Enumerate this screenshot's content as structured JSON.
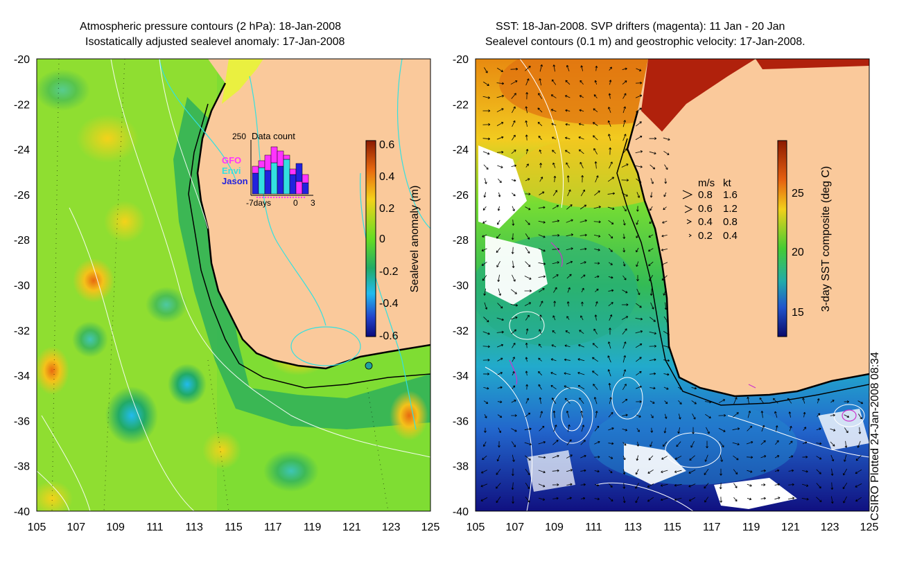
{
  "left_panel": {
    "title_line1": "Atmospheric pressure contours (2 hPa): 18-Jan-2008",
    "title_line2": "Isostatically adjusted sealevel anomaly: 17-Jan-2008",
    "colorbar": {
      "label": "Sealevel anomaly (m)",
      "ticks": [
        "0.6",
        "0.4",
        "0.2",
        "0",
        "-0.2",
        "-0.4",
        "-0.6"
      ]
    },
    "inset": {
      "count_label": "250",
      "title": "Data count",
      "legend": [
        {
          "label": "GFO",
          "color": "#ff33ff"
        },
        {
          "label": "Envi",
          "color": "#33e0e0"
        },
        {
          "label": "Jason",
          "color": "#2222dd"
        }
      ],
      "x_labels": [
        "-7days",
        "0",
        "3"
      ]
    }
  },
  "right_panel": {
    "title_line1": "SST: 18-Jan-2008. SVP drifters (magenta): 11 Jan - 20 Jan",
    "title_line2": "Sealevel contours (0.1 m) and geostrophic velocity: 17-Jan-2008.",
    "colorbar": {
      "label": "3-day SST composite (deg C)",
      "ticks": [
        "25",
        "20",
        "15"
      ]
    },
    "velocity_key": {
      "header_ms": "m/s",
      "header_kt": "kt",
      "rows": [
        {
          "ms": "0.8",
          "kt": "1.6"
        },
        {
          "ms": "0.6",
          "kt": "1.2"
        },
        {
          "ms": "0.4",
          "kt": "0.8"
        },
        {
          "ms": "0.2",
          "kt": "0.4"
        }
      ]
    }
  },
  "axes": {
    "lat_ticks": [
      "-20",
      "-22",
      "-24",
      "-26",
      "-28",
      "-30",
      "-32",
      "-34",
      "-36",
      "-38",
      "-40"
    ],
    "lon_ticks": [
      "105",
      "107",
      "109",
      "111",
      "113",
      "115",
      "117",
      "119",
      "121",
      "123",
      "125"
    ]
  },
  "credit": "CSIRO Plotted 24-Jan-2008 08:34",
  "colors": {
    "land": "#fac99b",
    "sea_anomaly_base": "#66dd33",
    "contour_cyan": "#33e0e0",
    "drifter_magenta": "#cc33cc"
  }
}
